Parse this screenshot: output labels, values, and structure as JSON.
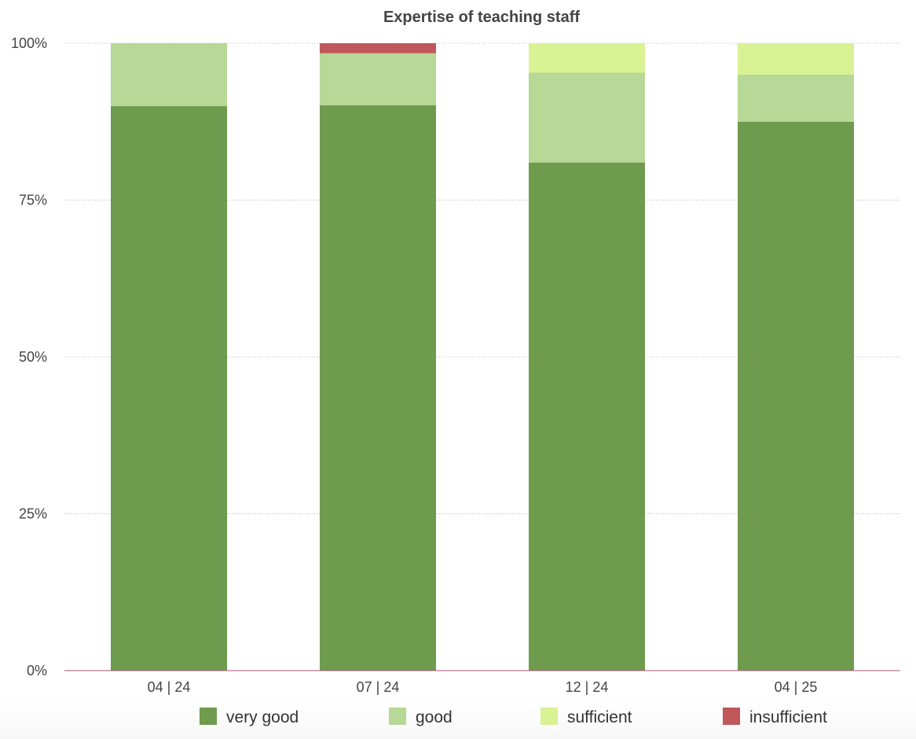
{
  "chart_data": {
    "type": "bar",
    "stacked": true,
    "title": "Expertise of teaching staff",
    "xlabel": "",
    "ylabel": "",
    "categories": [
      "04 | 24",
      "07 | 24",
      "12 | 24",
      "04 | 25"
    ],
    "ylim": [
      0,
      100
    ],
    "yticks": [
      0,
      25,
      50,
      75,
      100
    ],
    "ytick_labels": [
      "0%",
      "25%",
      "50%",
      "75%",
      "100%"
    ],
    "grid": true,
    "legend_position": "bottom",
    "series": [
      {
        "name": "very good",
        "color": "#6e9b4e",
        "values": [
          90.0,
          90.1,
          81.0,
          87.5
        ]
      },
      {
        "name": "good",
        "color": "#b7d896",
        "values": [
          10.0,
          8.3,
          14.3,
          7.5
        ]
      },
      {
        "name": "sufficient",
        "color": "#d8f294",
        "values": [
          0,
          0,
          4.7,
          5.0
        ]
      },
      {
        "name": "insufficient",
        "color": "#c0575b",
        "values": [
          0,
          1.6,
          0,
          0
        ]
      }
    ]
  }
}
